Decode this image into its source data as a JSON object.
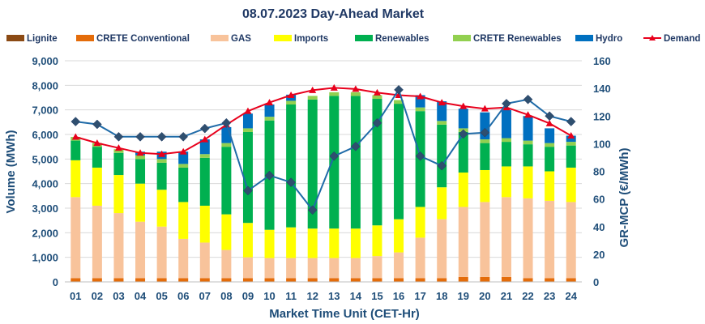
{
  "chart_data": {
    "type": "bar",
    "title": "08.07.2023  Day-Ahead Market",
    "xlabel": "Market Time Unit (CET-Hr)",
    "ylabel": "Volume (MWh)",
    "y2label": "GR-MCP (€/MWh)",
    "ylim": [
      0,
      9000
    ],
    "y2lim": [
      0,
      160
    ],
    "yticks": [
      "0",
      "1,000",
      "2,000",
      "3,000",
      "4,000",
      "5,000",
      "6,000",
      "7,000",
      "8,000",
      "9,000"
    ],
    "y2ticks": [
      "0",
      "20",
      "40",
      "60",
      "80",
      "100",
      "120",
      "140",
      "160"
    ],
    "categories": [
      "01",
      "02",
      "03",
      "04",
      "05",
      "06",
      "07",
      "08",
      "09",
      "10",
      "11",
      "12",
      "13",
      "14",
      "15",
      "16",
      "17",
      "18",
      "19",
      "20",
      "21",
      "22",
      "23",
      "24"
    ],
    "series": [
      {
        "name": "Lignite",
        "kind": "bar",
        "color": "#8B4A14",
        "values": [
          0,
          0,
          0,
          0,
          0,
          0,
          0,
          0,
          0,
          0,
          0,
          0,
          0,
          0,
          0,
          0,
          0,
          0,
          0,
          0,
          0,
          0,
          0,
          0
        ]
      },
      {
        "name": "CRETE Conventional",
        "kind": "bar",
        "color": "#E46C0A",
        "values": [
          150,
          150,
          150,
          150,
          150,
          150,
          150,
          150,
          150,
          150,
          150,
          150,
          150,
          150,
          150,
          150,
          150,
          150,
          200,
          200,
          200,
          150,
          150,
          150
        ]
      },
      {
        "name": "GAS",
        "kind": "bar",
        "color": "#F8C39B",
        "values": [
          3300,
          2950,
          2650,
          2300,
          2100,
          1600,
          1450,
          1150,
          850,
          820,
          820,
          820,
          820,
          820,
          900,
          1050,
          1650,
          2400,
          2850,
          3050,
          3250,
          3250,
          3150,
          3100
        ]
      },
      {
        "name": "Imports",
        "kind": "bar",
        "color": "#FFFF00",
        "values": [
          1500,
          1550,
          1550,
          1550,
          1500,
          1500,
          1500,
          1450,
          1400,
          1150,
          1250,
          1200,
          1200,
          1200,
          1250,
          1350,
          1250,
          1300,
          1400,
          1300,
          1250,
          1300,
          1200,
          1400
        ]
      },
      {
        "name": "Renewables",
        "kind": "bar",
        "color": "#00B050",
        "values": [
          800,
          850,
          900,
          1000,
          1100,
          1400,
          1950,
          2750,
          3700,
          4450,
          5000,
          5250,
          5400,
          5400,
          5150,
          4700,
          3900,
          2550,
          1650,
          1100,
          1000,
          900,
          1000,
          900
        ]
      },
      {
        "name": "CRETE Renewables",
        "kind": "bar",
        "color": "#92D050",
        "values": [
          150,
          150,
          150,
          150,
          150,
          150,
          150,
          150,
          150,
          150,
          150,
          150,
          150,
          150,
          150,
          150,
          150,
          150,
          150,
          150,
          150,
          150,
          150,
          150
        ]
      },
      {
        "name": "Hydro",
        "kind": "bar",
        "color": "#0070C0",
        "values": [
          0,
          0,
          0,
          150,
          300,
          500,
          600,
          650,
          600,
          500,
          250,
          0,
          0,
          0,
          0,
          0,
          500,
          800,
          800,
          1100,
          1150,
          1000,
          600,
          250
        ]
      },
      {
        "name": "Demand",
        "kind": "line",
        "axis": "left",
        "color": "#E8001C",
        "values": [
          5900,
          5650,
          5450,
          5250,
          5200,
          5300,
          5800,
          6400,
          6950,
          7300,
          7600,
          7800,
          7900,
          7850,
          7700,
          7600,
          7550,
          7300,
          7150,
          7050,
          7100,
          6800,
          6450,
          5950
        ]
      },
      {
        "name": "GR-MCP",
        "kind": "line",
        "axis": "right",
        "color": "#1F6BA8",
        "values": [
          116,
          114,
          105,
          105,
          105,
          105,
          111,
          115,
          66,
          77,
          72,
          52,
          91,
          98,
          115,
          139,
          91,
          84,
          107,
          108,
          129,
          132,
          120,
          116
        ]
      }
    ]
  }
}
